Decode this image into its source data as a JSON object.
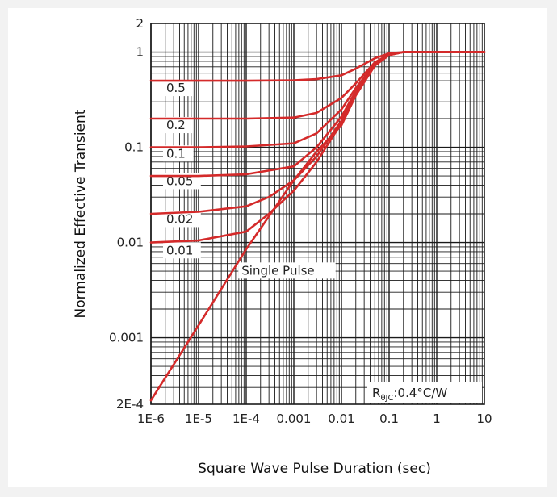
{
  "chart_data": {
    "type": "line",
    "title": "",
    "xlabel": "Square Wave Pulse Duration (sec)",
    "ylabel": "Normalized Effective Transient",
    "x_scale": "log",
    "y_scale": "log",
    "xlim": [
      1e-06,
      10
    ],
    "ylim": [
      0.0002,
      2
    ],
    "grid": true,
    "x_ticks": [
      {
        "value": 1e-06,
        "label": "1E-6"
      },
      {
        "value": 1e-05,
        "label": "1E-5"
      },
      {
        "value": 0.0001,
        "label": "1E-4"
      },
      {
        "value": 0.001,
        "label": "0.001"
      },
      {
        "value": 0.01,
        "label": "0.01"
      },
      {
        "value": 0.1,
        "label": "0.1"
      },
      {
        "value": 1,
        "label": "1"
      },
      {
        "value": 10,
        "label": "10"
      }
    ],
    "y_ticks": [
      {
        "value": 2,
        "label": "2"
      },
      {
        "value": 1,
        "label": "1"
      },
      {
        "value": 0.1,
        "label": "0.1"
      },
      {
        "value": 0.01,
        "label": "0.01"
      },
      {
        "value": 0.001,
        "label": "0.001"
      },
      {
        "value": 0.0002,
        "label": "2E-4"
      }
    ],
    "series": [
      {
        "name": "0.5",
        "x": [
          1e-06,
          1e-05,
          0.0001,
          0.001,
          0.003,
          0.01,
          0.02,
          0.05,
          0.1,
          0.2,
          1,
          10
        ],
        "y": [
          0.5,
          0.5,
          0.5,
          0.505,
          0.52,
          0.57,
          0.67,
          0.86,
          0.97,
          1.0,
          1.0,
          1.0
        ]
      },
      {
        "name": "0.2",
        "x": [
          1e-06,
          1e-05,
          0.0001,
          0.001,
          0.003,
          0.01,
          0.02,
          0.05,
          0.1,
          0.2,
          1,
          10
        ],
        "y": [
          0.2,
          0.2,
          0.2,
          0.205,
          0.23,
          0.33,
          0.47,
          0.78,
          0.95,
          1.0,
          1.0,
          1.0
        ]
      },
      {
        "name": "0.1",
        "x": [
          1e-06,
          1e-05,
          0.0001,
          0.001,
          0.003,
          0.01,
          0.02,
          0.05,
          0.1,
          0.2,
          1,
          10
        ],
        "y": [
          0.1,
          0.1,
          0.102,
          0.11,
          0.14,
          0.25,
          0.42,
          0.75,
          0.94,
          1.0,
          1.0,
          1.0
        ]
      },
      {
        "name": "0.05",
        "x": [
          1e-06,
          1e-05,
          0.0001,
          0.001,
          0.003,
          0.01,
          0.02,
          0.05,
          0.1,
          0.2,
          1,
          10
        ],
        "y": [
          0.05,
          0.05,
          0.052,
          0.063,
          0.1,
          0.21,
          0.39,
          0.74,
          0.94,
          1.0,
          1.0,
          1.0
        ]
      },
      {
        "name": "0.02",
        "x": [
          1e-06,
          1e-05,
          0.0001,
          0.0003,
          0.001,
          0.003,
          0.01,
          0.02,
          0.05,
          0.1,
          0.2,
          1,
          10
        ],
        "y": [
          0.02,
          0.021,
          0.024,
          0.03,
          0.045,
          0.08,
          0.19,
          0.37,
          0.73,
          0.93,
          1.0,
          1.0,
          1.0
        ]
      },
      {
        "name": "0.01",
        "x": [
          1e-06,
          1e-05,
          0.0001,
          0.0003,
          0.001,
          0.003,
          0.01,
          0.02,
          0.05,
          0.1,
          0.2,
          1,
          10
        ],
        "y": [
          0.01,
          0.0105,
          0.013,
          0.02,
          0.035,
          0.07,
          0.18,
          0.36,
          0.72,
          0.93,
          1.0,
          1.0,
          1.0
        ]
      },
      {
        "name": "Single Pulse",
        "x": [
          1e-06,
          1e-05,
          0.0001,
          0.001,
          0.003,
          0.01,
          0.02,
          0.05,
          0.1,
          0.2,
          1,
          10
        ],
        "y": [
          0.00022,
          0.00135,
          0.0085,
          0.045,
          0.09,
          0.17,
          0.35,
          0.72,
          0.93,
          1.0,
          1.0,
          1.0
        ]
      }
    ],
    "curve_labels": [
      {
        "text": "0.5",
        "x": 2.1e-06,
        "y": 0.38
      },
      {
        "text": "0.2",
        "x": 2.1e-06,
        "y": 0.155
      },
      {
        "text": "0.1",
        "x": 2.1e-06,
        "y": 0.078
      },
      {
        "text": "0.05",
        "x": 2.1e-06,
        "y": 0.04
      },
      {
        "text": "0.02",
        "x": 2.1e-06,
        "y": 0.016
      },
      {
        "text": "0.01",
        "x": 2.1e-06,
        "y": 0.0075
      },
      {
        "text": "Single Pulse",
        "x": 8e-05,
        "y": 0.0046
      }
    ],
    "annotation": {
      "main": "R",
      "sub": "θJC",
      "rest": ":0.4°C/W"
    },
    "colors": {
      "series": "#d42a2a",
      "grid": "#1a1a1a",
      "frame": "#1a1a1a"
    }
  }
}
